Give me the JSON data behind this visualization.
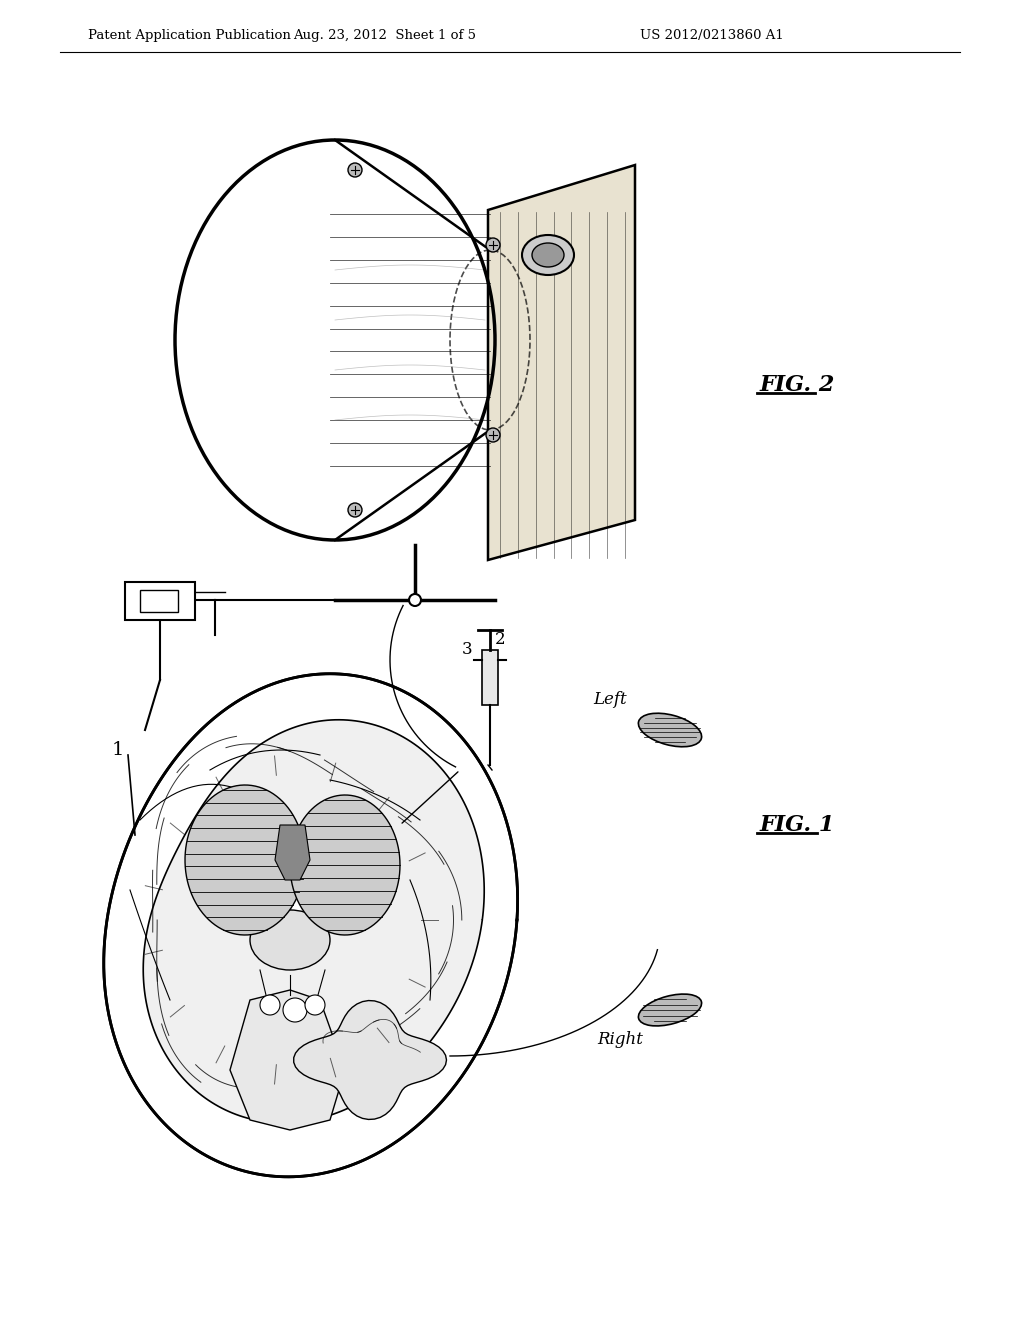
{
  "background_color": "#ffffff",
  "header_left": "Patent Application Publication",
  "header_center": "Aug. 23, 2012  Sheet 1 of 5",
  "header_right": "US 2012/0213860 A1",
  "fig2_label": "FIG. 2",
  "fig1_label": "FIG. 1",
  "label1": "1",
  "label2": "2",
  "label3": "3",
  "label_left": "Left",
  "label_right": "Right"
}
